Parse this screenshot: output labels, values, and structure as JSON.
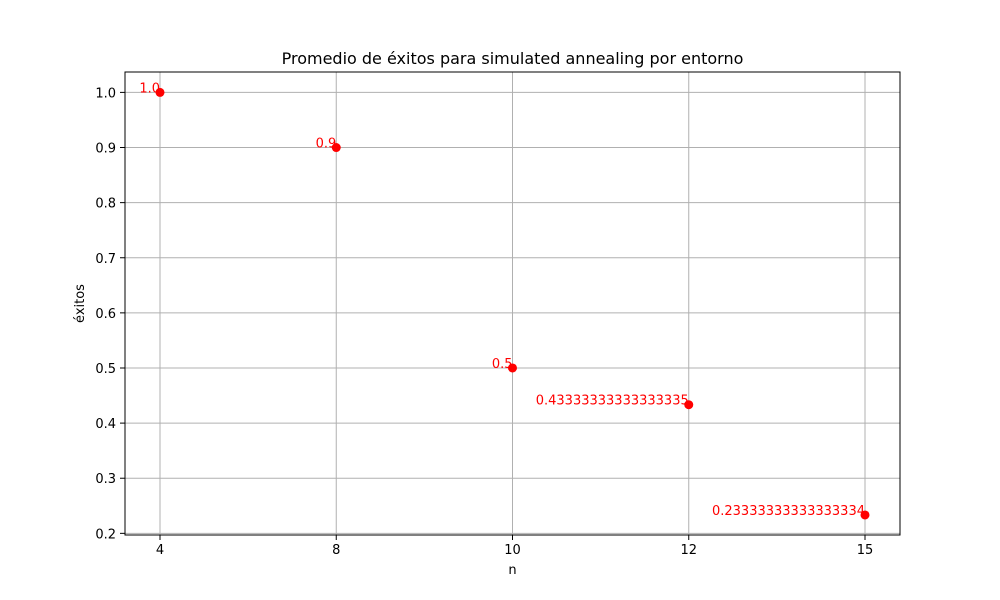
{
  "chart_data": {
    "type": "scatter",
    "title": "Promedio de éxitos para simulated annealing por entorno",
    "xlabel": "n",
    "ylabel": "éxitos",
    "x_categories": [
      "4",
      "8",
      "10",
      "12",
      "15"
    ],
    "points": [
      {
        "x": "4",
        "y": 1.0,
        "label": "1.0"
      },
      {
        "x": "8",
        "y": 0.9,
        "label": "0.9"
      },
      {
        "x": "10",
        "y": 0.5,
        "label": "0.5"
      },
      {
        "x": "12",
        "y": 0.43333333333333335,
        "label": "0.43333333333333335"
      },
      {
        "x": "15",
        "y": 0.23333333333333334,
        "label": "0.23333333333333334"
      }
    ],
    "yticks": [
      "0.2",
      "0.3",
      "0.4",
      "0.5",
      "0.6",
      "0.7",
      "0.8",
      "0.9",
      "1.0"
    ],
    "ylim": [
      0.197,
      1.037
    ],
    "grid": true,
    "colors": {
      "point": "#ff0000",
      "label": "#ff0000",
      "grid": "#b0b0b0"
    }
  }
}
